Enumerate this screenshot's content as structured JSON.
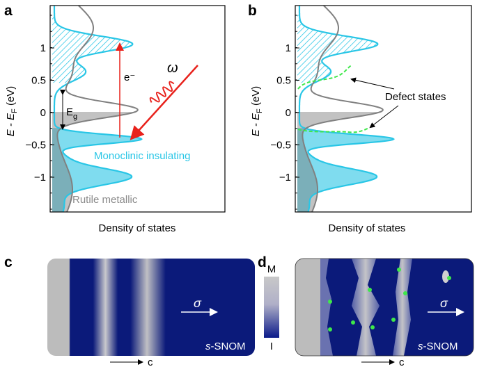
{
  "panels": {
    "a": {
      "label": "a",
      "y_label_main": "E - E",
      "y_label_sub": "F",
      "y_label_unit": " (eV)",
      "y_tick_labels": [
        "1",
        "0.5",
        "0",
        "−0.5",
        "−1"
      ],
      "x_label": "Density of states",
      "electron": "e⁻",
      "photon": "ω",
      "gap_main": "E",
      "gap_sub": "g",
      "insulating": "Monoclinic insulating",
      "metallic": "Rutile metallic"
    },
    "b": {
      "label": "b",
      "y_label_main": "E - E",
      "y_label_sub": "F",
      "y_label_unit": " (eV)",
      "y_tick_labels": [
        "1",
        "0.5",
        "0",
        "−0.5",
        "−1"
      ],
      "x_label": "Density of states",
      "defect": "Defect states"
    },
    "c": {
      "label": "c",
      "polarization": "σ",
      "snom_prefix": "s",
      "snom_main": "-SNOM",
      "axis": "c"
    },
    "colorbar": {
      "top": "M",
      "bottom": "I"
    },
    "d": {
      "label": "d",
      "polarization": "σ",
      "snom_prefix": "s",
      "snom_main": "-SNOM",
      "axis": "c"
    }
  }
}
